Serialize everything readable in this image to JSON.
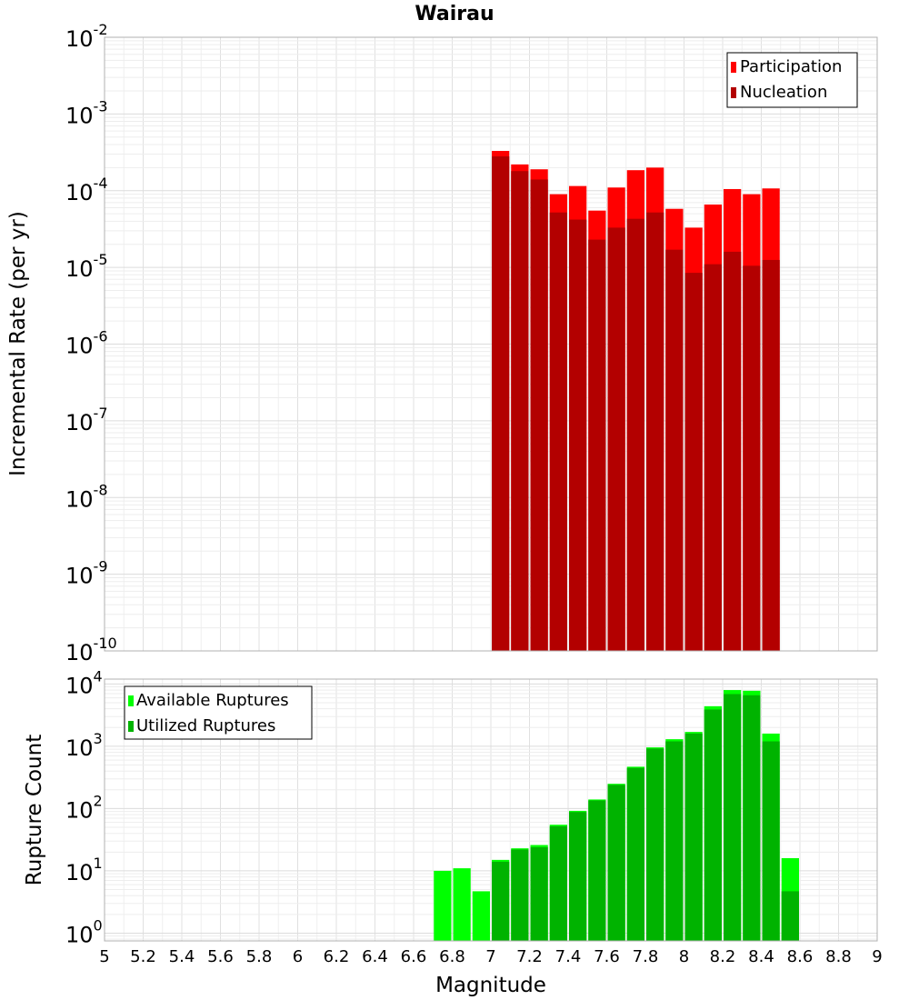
{
  "chart_data": [
    {
      "type": "bar",
      "title": "Wairau",
      "xlabel": "",
      "ylabel": "Incremental Rate (per yr)",
      "yscale": "log",
      "ylim": [
        1e-10,
        0.01
      ],
      "xlim": [
        5,
        9
      ],
      "y_tick_labels": [
        {
          "base": "10",
          "exp": "-10"
        },
        {
          "base": "10",
          "exp": "-9"
        },
        {
          "base": "10",
          "exp": "-8"
        },
        {
          "base": "10",
          "exp": "-7"
        },
        {
          "base": "10",
          "exp": "-6"
        },
        {
          "base": "10",
          "exp": "-5"
        },
        {
          "base": "10",
          "exp": "-4"
        },
        {
          "base": "10",
          "exp": "-3"
        },
        {
          "base": "10",
          "exp": "-2"
        }
      ],
      "grid": true,
      "legend_position": "top-right",
      "bar_width": 0.1,
      "x": [
        7.05,
        7.15,
        7.25,
        7.35,
        7.45,
        7.55,
        7.65,
        7.75,
        7.85,
        7.95,
        8.05,
        8.15,
        8.25,
        8.35,
        8.45
      ],
      "series": [
        {
          "name": "Participation",
          "color": "#ff0000",
          "values": [
            0.00033,
            0.00022,
            0.00019,
            9e-05,
            0.000115,
            5.5e-05,
            0.00011,
            0.000185,
            0.0002,
            5.8e-05,
            3.3e-05,
            6.6e-05,
            0.000105,
            9e-05,
            0.000107
          ]
        },
        {
          "name": "Nucleation",
          "color": "#b30000",
          "values": [
            0.00028,
            0.00018,
            0.00014,
            5.2e-05,
            4.2e-05,
            2.3e-05,
            3.3e-05,
            4.3e-05,
            5.2e-05,
            1.7e-05,
            8.5e-06,
            1.1e-05,
            1.6e-05,
            1.05e-05,
            1.25e-05
          ]
        }
      ]
    },
    {
      "type": "bar",
      "title": "",
      "xlabel": "Magnitude",
      "ylabel": "Rupture Count",
      "yscale": "log",
      "ylim": [
        0.75,
        12000
      ],
      "xlim": [
        5,
        9
      ],
      "x_ticks": [
        5,
        5.2,
        5.4,
        5.6,
        5.8,
        6,
        6.2,
        6.4,
        6.6,
        6.8,
        7,
        7.2,
        7.4,
        7.6,
        7.8,
        8,
        8.2,
        8.4,
        8.6,
        8.8,
        9
      ],
      "x_tick_labels": [
        "5",
        "5.2",
        "5.4",
        "5.6",
        "5.8",
        "6",
        "6.2",
        "6.4",
        "6.6",
        "6.8",
        "7",
        "7.2",
        "7.4",
        "7.6",
        "7.8",
        "8",
        "8.2",
        "8.4",
        "8.6",
        "8.8",
        "9"
      ],
      "y_tick_labels": [
        {
          "base": "10",
          "exp": "0"
        },
        {
          "base": "10",
          "exp": "1"
        },
        {
          "base": "10",
          "exp": "2"
        },
        {
          "base": "10",
          "exp": "3"
        },
        {
          "base": "10",
          "exp": "4"
        }
      ],
      "grid": true,
      "legend_position": "top-left",
      "bar_width": 0.1,
      "x": [
        6.75,
        6.85,
        6.95,
        7.05,
        7.15,
        7.25,
        7.35,
        7.45,
        7.55,
        7.65,
        7.75,
        7.85,
        7.95,
        8.05,
        8.15,
        8.25,
        8.35,
        8.45,
        8.55
      ],
      "series": [
        {
          "name": "Available Ruptures",
          "color": "#00ff00",
          "values": [
            10,
            11,
            4.7,
            15,
            23,
            26,
            55,
            92,
            140,
            250,
            470,
            960,
            1300,
            1700,
            4400,
            8000,
            7800,
            1600,
            16
          ]
        },
        {
          "name": "Utilized Ruptures",
          "color": "#00b300",
          "values": [
            null,
            null,
            null,
            14,
            22,
            24,
            52,
            88,
            135,
            240,
            450,
            920,
            1200,
            1600,
            3900,
            6900,
            6600,
            1200,
            4.7
          ]
        }
      ]
    }
  ]
}
